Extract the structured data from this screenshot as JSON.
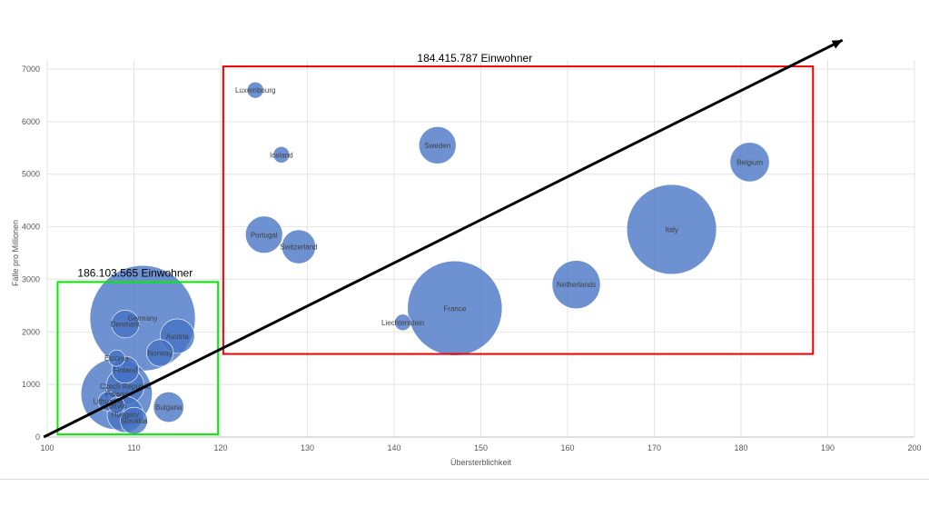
{
  "chart_data": {
    "type": "bubble",
    "xlabel": "Übersterblichkeit",
    "ylabel": "Fälle pro Millionen",
    "xlim": [
      100,
      200
    ],
    "ylim": [
      0,
      7000
    ],
    "xticks": [
      100,
      110,
      120,
      130,
      140,
      150,
      160,
      170,
      180,
      190,
      200
    ],
    "yticks": [
      0,
      1000,
      2000,
      3000,
      4000,
      5000,
      6000,
      7000
    ],
    "grid": true,
    "bubble_color": "#4472c4",
    "points": [
      {
        "name": "Luxembourg",
        "x": 124,
        "y": 6600,
        "size": 0.63
      },
      {
        "name": "Iceland",
        "x": 127,
        "y": 5370,
        "size": 0.36
      },
      {
        "name": "Sweden",
        "x": 145,
        "y": 5550,
        "size": 10.4
      },
      {
        "name": "Belgium",
        "x": 181,
        "y": 5230,
        "size": 11.6
      },
      {
        "name": "Italy",
        "x": 172,
        "y": 3950,
        "size": 60.3
      },
      {
        "name": "Portugal",
        "x": 125,
        "y": 3850,
        "size": 10.3
      },
      {
        "name": "Switzerland",
        "x": 129,
        "y": 3620,
        "size": 8.6
      },
      {
        "name": "Netherlands",
        "x": 161,
        "y": 2900,
        "size": 17.4
      },
      {
        "name": "France",
        "x": 147,
        "y": 2450,
        "size": 67.1
      },
      {
        "name": "Liechtenstein",
        "x": 141,
        "y": 2180,
        "size": 0.04
      },
      {
        "name": "Germany",
        "x": 111,
        "y": 2260,
        "size": 83.2
      },
      {
        "name": "Denmark",
        "x": 109,
        "y": 2150,
        "size": 5.8
      },
      {
        "name": "Austria",
        "x": 115,
        "y": 1920,
        "size": 8.9
      },
      {
        "name": "Norway",
        "x": 113,
        "y": 1600,
        "size": 5.4
      },
      {
        "name": "Estonia",
        "x": 108,
        "y": 1500,
        "size": 1.3
      },
      {
        "name": "Finland",
        "x": 109,
        "y": 1280,
        "size": 5.5
      },
      {
        "name": "Czech Republic",
        "x": 109,
        "y": 970,
        "size": 10.7
      },
      {
        "name": "Poland",
        "x": 108,
        "y": 820,
        "size": 38.0
      },
      {
        "name": "Lithuania",
        "x": 107,
        "y": 680,
        "size": 2.8
      },
      {
        "name": "Latvia",
        "x": 108,
        "y": 600,
        "size": 1.9
      },
      {
        "name": "Bulgaria",
        "x": 114,
        "y": 570,
        "size": 6.9
      },
      {
        "name": "Hungary",
        "x": 109,
        "y": 430,
        "size": 9.8
      },
      {
        "name": "Slovakia",
        "x": 110,
        "y": 310,
        "size": 5.5
      }
    ],
    "annotations": {
      "green_group_label": "186.103.565 Einwohner",
      "green_color": "#00ee00",
      "red_group_label": "184.415.787 Einwohner",
      "red_color": "#ee0000",
      "arrow_color": "#000000"
    }
  }
}
